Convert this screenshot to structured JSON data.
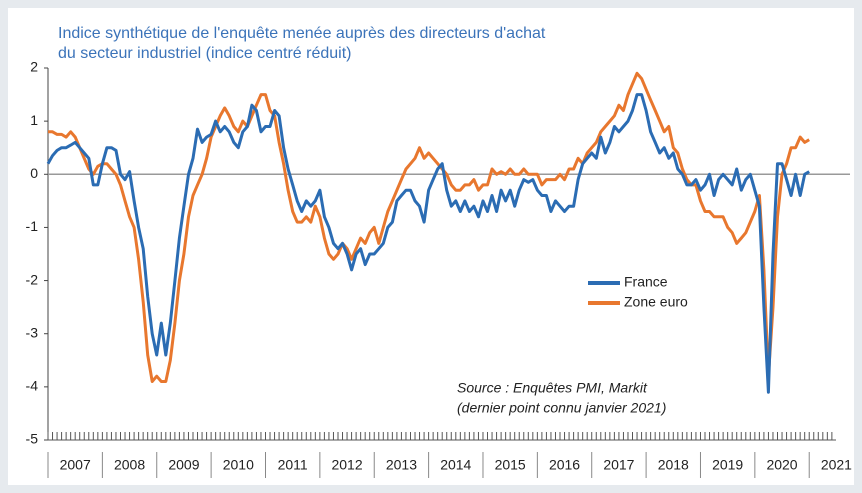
{
  "chart_data": {
    "type": "line",
    "title": [
      "Indice synthétique de l'enquête menée auprès des directeurs d'achat",
      "du secteur industriel (indice centré réduit)"
    ],
    "annotations": [
      "Source : Enquêtes PMI, Markit",
      "(dernier point connu janvier 2021)"
    ],
    "xlim": [
      2007,
      2021.75
    ],
    "xticks": [
      2007,
      2008,
      2009,
      2010,
      2011,
      2012,
      2013,
      2014,
      2015,
      2016,
      2017,
      2018,
      2019,
      2020,
      2021
    ],
    "ylim": [
      -5,
      2
    ],
    "yticks": [
      2,
      1,
      0,
      -1,
      -2,
      -3,
      -4,
      -5
    ],
    "legend": "right",
    "series": [
      {
        "name": "France",
        "color": "#2b6cb3",
        "values": [
          0.2,
          0.35,
          0.45,
          0.5,
          0.5,
          0.55,
          0.6,
          0.5,
          0.4,
          0.3,
          -0.2,
          -0.2,
          0.2,
          0.5,
          0.5,
          0.45,
          0.0,
          -0.1,
          0.05,
          -0.5,
          -1.0,
          -1.4,
          -2.3,
          -3.0,
          -3.4,
          -2.8,
          -3.4,
          -2.8,
          -2.0,
          -1.2,
          -0.6,
          0.0,
          0.3,
          0.85,
          0.6,
          0.7,
          0.75,
          1.0,
          0.8,
          0.9,
          0.8,
          0.6,
          0.5,
          0.8,
          0.9,
          1.3,
          1.2,
          0.8,
          0.9,
          0.9,
          1.2,
          1.1,
          0.5,
          0.1,
          -0.2,
          -0.5,
          -0.7,
          -0.5,
          -0.6,
          -0.5,
          -0.3,
          -0.8,
          -1.0,
          -1.3,
          -1.4,
          -1.3,
          -1.5,
          -1.8,
          -1.5,
          -1.4,
          -1.7,
          -1.5,
          -1.5,
          -1.4,
          -1.3,
          -1.0,
          -0.9,
          -0.5,
          -0.4,
          -0.3,
          -0.3,
          -0.5,
          -0.6,
          -0.9,
          -0.3,
          -0.1,
          0.1,
          0.2,
          -0.3,
          -0.6,
          -0.5,
          -0.7,
          -0.5,
          -0.7,
          -0.6,
          -0.8,
          -0.5,
          -0.7,
          -0.4,
          -0.7,
          -0.3,
          -0.5,
          -0.3,
          -0.6,
          -0.3,
          -0.1,
          -0.15,
          -0.1,
          -0.3,
          -0.4,
          -0.4,
          -0.7,
          -0.5,
          -0.6,
          -0.7,
          -0.6,
          -0.6,
          -0.1,
          0.2,
          0.3,
          0.4,
          0.3,
          0.7,
          0.4,
          0.6,
          0.9,
          0.8,
          0.9,
          1.0,
          1.2,
          1.5,
          1.5,
          1.2,
          0.8,
          0.6,
          0.4,
          0.5,
          0.3,
          0.4,
          0.1,
          0.0,
          -0.2,
          -0.2,
          -0.1,
          -0.3,
          -0.2,
          0.0,
          -0.4,
          -0.1,
          0.0,
          -0.1,
          -0.2,
          0.1,
          -0.3,
          -0.1,
          0.0,
          -0.3,
          -0.6,
          -2.5,
          -4.1,
          -1.5,
          0.2,
          0.2,
          -0.1,
          -0.4,
          0.0,
          -0.4,
          0.0,
          0.05
        ]
      },
      {
        "name": "Zone euro",
        "color": "#e8772e",
        "values": [
          0.8,
          0.8,
          0.75,
          0.75,
          0.7,
          0.8,
          0.7,
          0.5,
          0.3,
          0.1,
          0.0,
          0.15,
          0.2,
          0.2,
          0.1,
          0.0,
          -0.2,
          -0.5,
          -0.8,
          -1.0,
          -1.6,
          -2.4,
          -3.4,
          -3.9,
          -3.8,
          -3.9,
          -3.9,
          -3.5,
          -2.8,
          -2.0,
          -1.5,
          -0.8,
          -0.4,
          -0.2,
          0.0,
          0.3,
          0.7,
          0.9,
          1.1,
          1.25,
          1.1,
          0.9,
          0.8,
          1.0,
          0.9,
          1.1,
          1.3,
          1.5,
          1.5,
          1.2,
          1.1,
          0.6,
          0.2,
          -0.3,
          -0.7,
          -0.9,
          -0.9,
          -0.8,
          -0.9,
          -0.6,
          -0.8,
          -1.2,
          -1.5,
          -1.6,
          -1.5,
          -1.3,
          -1.4,
          -1.6,
          -1.4,
          -1.2,
          -1.3,
          -1.1,
          -1.0,
          -1.3,
          -1.0,
          -0.7,
          -0.5,
          -0.3,
          -0.1,
          0.1,
          0.2,
          0.3,
          0.5,
          0.3,
          0.4,
          0.3,
          0.2,
          0.1,
          0.0,
          -0.2,
          -0.3,
          -0.3,
          -0.2,
          -0.2,
          -0.1,
          -0.3,
          -0.2,
          -0.2,
          0.1,
          0.0,
          0.05,
          0.0,
          0.1,
          0.0,
          0.0,
          0.1,
          0.0,
          0.0,
          0.0,
          -0.2,
          -0.1,
          -0.1,
          -0.1,
          0.0,
          -0.1,
          0.1,
          0.1,
          0.3,
          0.2,
          0.4,
          0.5,
          0.6,
          0.8,
          0.9,
          1.0,
          1.1,
          1.3,
          1.2,
          1.5,
          1.7,
          1.9,
          1.8,
          1.6,
          1.4,
          1.2,
          1.0,
          0.8,
          0.9,
          0.5,
          0.4,
          0.1,
          -0.1,
          -0.2,
          -0.2,
          -0.5,
          -0.7,
          -0.7,
          -0.8,
          -0.8,
          -0.8,
          -1.0,
          -1.1,
          -1.3,
          -1.2,
          -1.1,
          -0.9,
          -0.7,
          -0.4,
          -1.8,
          -3.8,
          -2.5,
          -0.8,
          0.0,
          0.2,
          0.5,
          0.5,
          0.7,
          0.6,
          0.65
        ]
      }
    ]
  }
}
